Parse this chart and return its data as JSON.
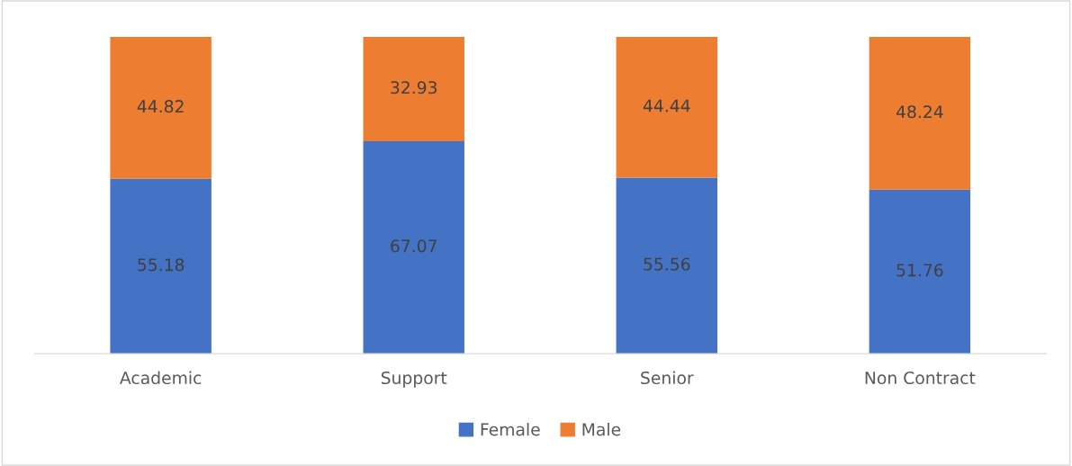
{
  "chart_data": {
    "type": "bar",
    "stacked": true,
    "categories": [
      "Academic",
      "Support",
      "Senior",
      "Non Contract"
    ],
    "series": [
      {
        "name": "Female",
        "color": "#4472c4",
        "values": [
          55.18,
          67.07,
          55.56,
          51.76
        ]
      },
      {
        "name": "Male",
        "color": "#ed7d31",
        "values": [
          44.82,
          32.93,
          44.44,
          48.24
        ]
      }
    ],
    "data_labels": true,
    "legend": "bottom",
    "grid": false,
    "tick_labels": "x"
  }
}
